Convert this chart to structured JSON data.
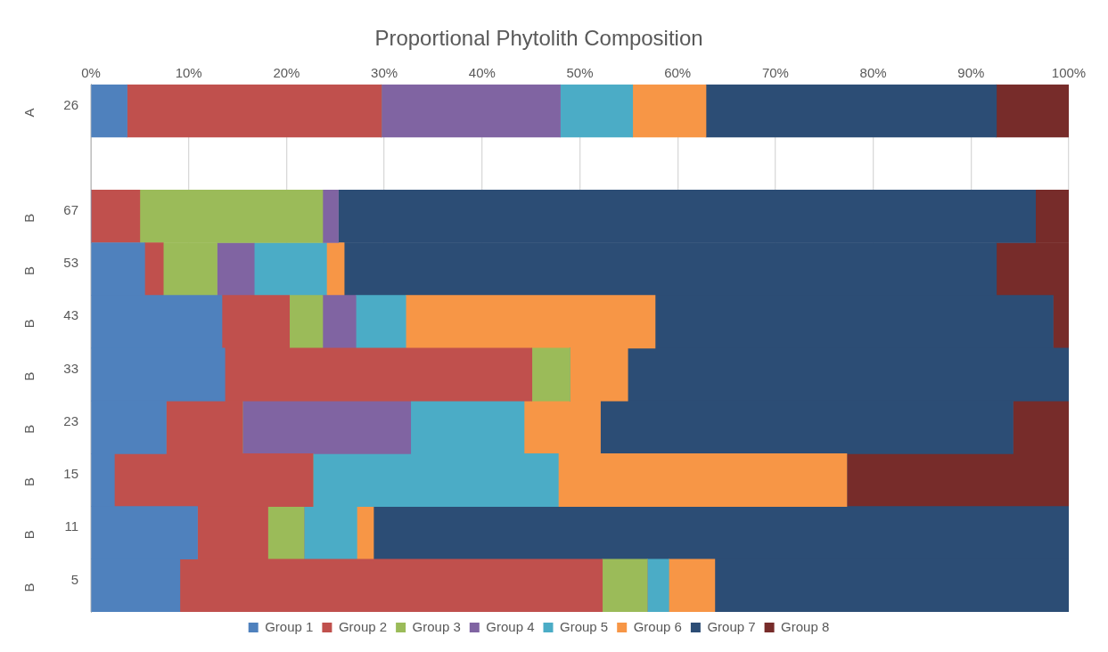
{
  "chart_data": {
    "type": "bar",
    "orientation": "horizontal",
    "stacked": true,
    "title": "Proportional Phytolith Composition",
    "categories": [
      "26",
      null,
      "67",
      "53",
      "43",
      "33",
      "23",
      "15",
      "11",
      "5"
    ],
    "annotations": [
      "A",
      "B",
      "B",
      "B",
      "B",
      "B",
      "B",
      "B",
      "B"
    ],
    "series": [
      {
        "name": "Group 1",
        "color": "#4f81bd",
        "values": [
          3.7,
          null,
          0,
          5.5,
          13.4,
          13.7,
          7.7,
          2.4,
          10.9,
          9.1
        ]
      },
      {
        "name": "Group 2",
        "color": "#c0504d",
        "values": [
          26.0,
          null,
          5.0,
          1.9,
          6.9,
          31.4,
          7.8,
          20.3,
          7.2,
          43.2
        ]
      },
      {
        "name": "Group 3",
        "color": "#9bbb59",
        "values": [
          0,
          null,
          18.7,
          5.5,
          3.4,
          3.9,
          0,
          0,
          3.7,
          4.6
        ]
      },
      {
        "name": "Group 4",
        "color": "#8064a2",
        "values": [
          18.3,
          null,
          1.6,
          3.8,
          3.4,
          0,
          17.2,
          0,
          0,
          0
        ]
      },
      {
        "name": "Group 5",
        "color": "#4bacc6",
        "values": [
          7.4,
          null,
          0,
          7.4,
          5.1,
          0,
          11.6,
          25.1,
          5.4,
          2.2
        ]
      },
      {
        "name": "Group 6",
        "color": "#f79646",
        "values": [
          7.5,
          null,
          0,
          1.8,
          25.5,
          5.9,
          7.8,
          29.5,
          1.7,
          4.7
        ]
      },
      {
        "name": "Group 7",
        "color": "#2c4d75",
        "values": [
          29.7,
          null,
          71.3,
          66.7,
          40.7,
          45.1,
          42.2,
          0,
          71.1,
          36.2
        ]
      },
      {
        "name": "Group 8",
        "color": "#772c2a",
        "values": [
          7.4,
          null,
          3.4,
          7.4,
          1.6,
          0,
          5.7,
          22.7,
          0,
          0
        ]
      }
    ],
    "xlim": [
      0,
      100
    ],
    "xticks": [
      {
        "value": 0,
        "label": "0%"
      },
      {
        "value": 10,
        "label": "10%"
      },
      {
        "value": 20,
        "label": "20%"
      },
      {
        "value": 30,
        "label": "30%"
      },
      {
        "value": 40,
        "label": "40%"
      },
      {
        "value": 50,
        "label": "50%"
      },
      {
        "value": 60,
        "label": "60%"
      },
      {
        "value": 70,
        "label": "70%"
      },
      {
        "value": 80,
        "label": "80%"
      },
      {
        "value": 90,
        "label": "90%"
      },
      {
        "value": 100,
        "label": "100%"
      }
    ],
    "grid": "x",
    "legend": "bottom"
  }
}
